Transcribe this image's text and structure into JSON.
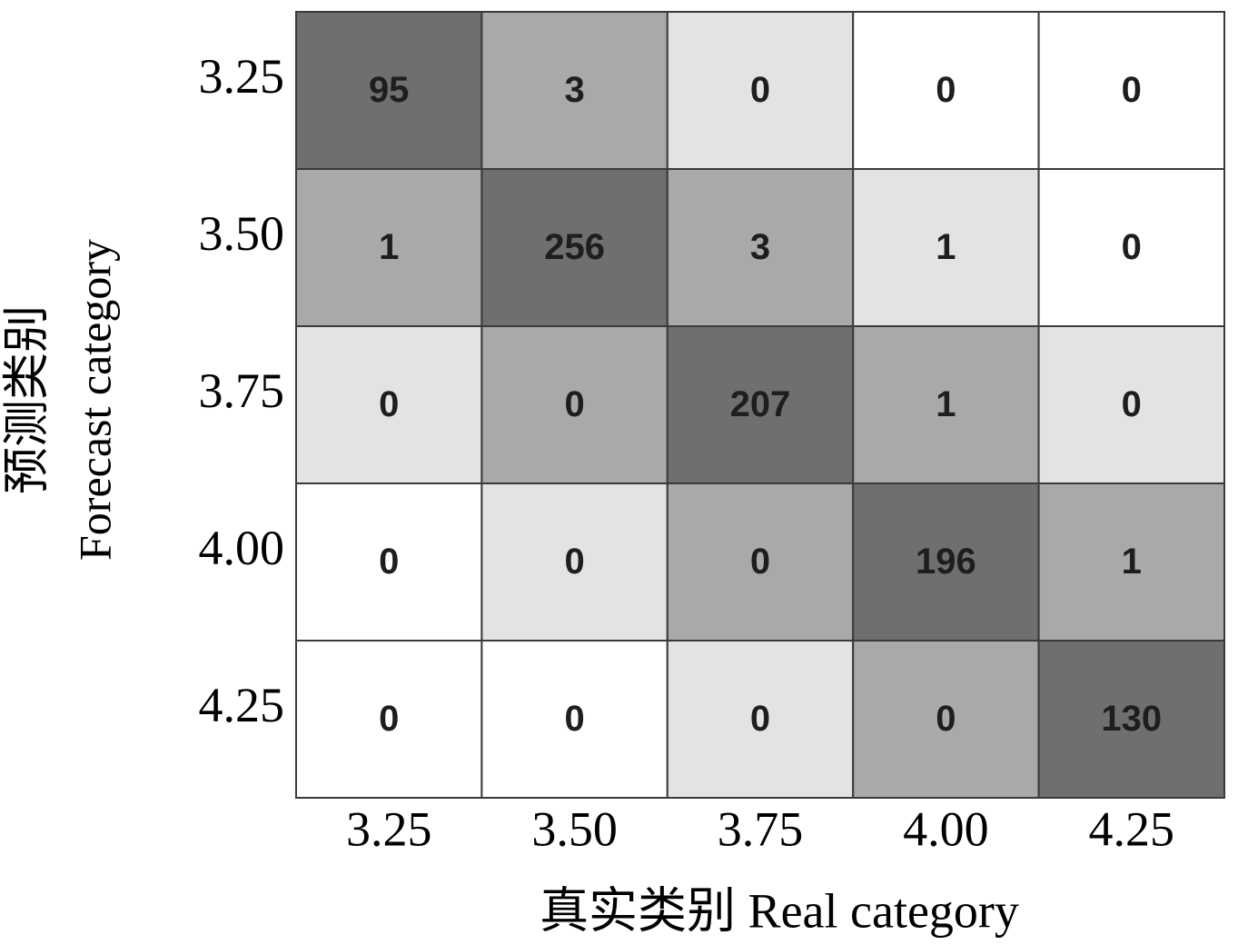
{
  "chart_data": {
    "type": "heatmap",
    "xlabel": "真实类别 Real category",
    "ylabel": [
      "预测类别",
      "Forecast category"
    ],
    "x_categories": [
      "3.25",
      "3.50",
      "3.75",
      "4.00",
      "4.25"
    ],
    "y_categories": [
      "3.25",
      "3.50",
      "3.75",
      "4.00",
      "4.25"
    ],
    "values": [
      [
        95,
        3,
        0,
        0,
        0
      ],
      [
        1,
        256,
        3,
        1,
        0
      ],
      [
        0,
        0,
        207,
        1,
        0
      ],
      [
        0,
        0,
        0,
        196,
        1
      ],
      [
        0,
        0,
        0,
        0,
        130
      ]
    ],
    "cell_colors": [
      [
        "#6f6f6f",
        "#a9a9a9",
        "#e3e3e3",
        "#ffffff",
        "#ffffff"
      ],
      [
        "#a9a9a9",
        "#6f6f6f",
        "#a9a9a9",
        "#e3e3e3",
        "#ffffff"
      ],
      [
        "#e3e3e3",
        "#a9a9a9",
        "#6f6f6f",
        "#a9a9a9",
        "#e3e3e3"
      ],
      [
        "#ffffff",
        "#e3e3e3",
        "#a9a9a9",
        "#6f6f6f",
        "#a9a9a9"
      ],
      [
        "#ffffff",
        "#ffffff",
        "#e3e3e3",
        "#a9a9a9",
        "#6f6f6f"
      ]
    ]
  }
}
